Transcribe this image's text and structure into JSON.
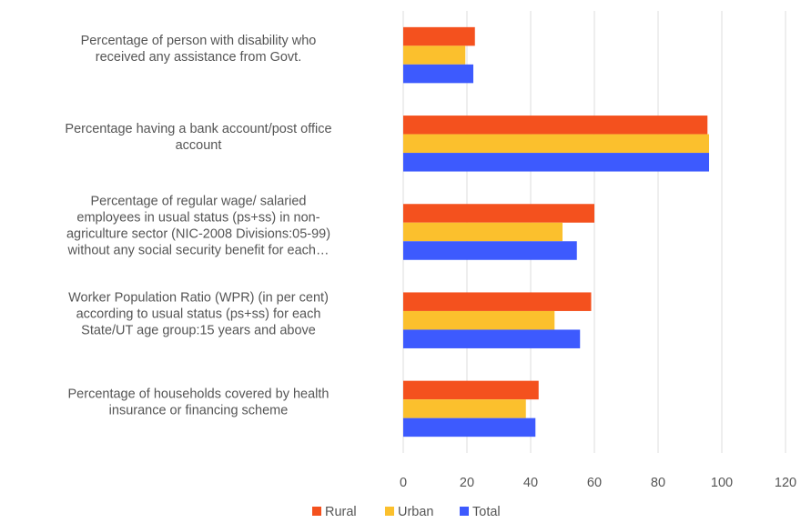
{
  "chart_data": {
    "type": "bar",
    "orientation": "horizontal",
    "categories": [
      [
        "Percentage of person with disability who",
        "received any assistance from Govt."
      ],
      [
        "Percentage having a bank account/post office",
        "account"
      ],
      [
        "Percentage of regular wage/ salaried",
        "employees in usual status (ps+ss) in non-",
        "agriculture sector (NIC-2008 Divisions:05-99)",
        "without any social security benefit for each…"
      ],
      [
        "Worker Population Ratio (WPR) (in per cent)",
        "according to usual status (ps+ss) for each",
        "State/UT age group:15 years and above"
      ],
      [
        "Percentage of households covered by health",
        "insurance or financing scheme"
      ]
    ],
    "series": [
      {
        "name": "Rural",
        "color": "#f4511e",
        "values": [
          22.5,
          95.5,
          60,
          59,
          42.5
        ]
      },
      {
        "name": "Urban",
        "color": "#fbc02d",
        "values": [
          19.5,
          96,
          50,
          47.5,
          38.5
        ]
      },
      {
        "name": "Total",
        "color": "#3d5afe",
        "values": [
          22,
          96,
          54.5,
          55.5,
          41.5
        ]
      }
    ],
    "xlim": [
      0,
      120
    ],
    "xticks": [
      "0",
      "20",
      "40",
      "60",
      "80",
      "100",
      "120"
    ],
    "grid": "vertical",
    "legend": "bottom",
    "title": "",
    "xlabel": "",
    "ylabel": ""
  }
}
